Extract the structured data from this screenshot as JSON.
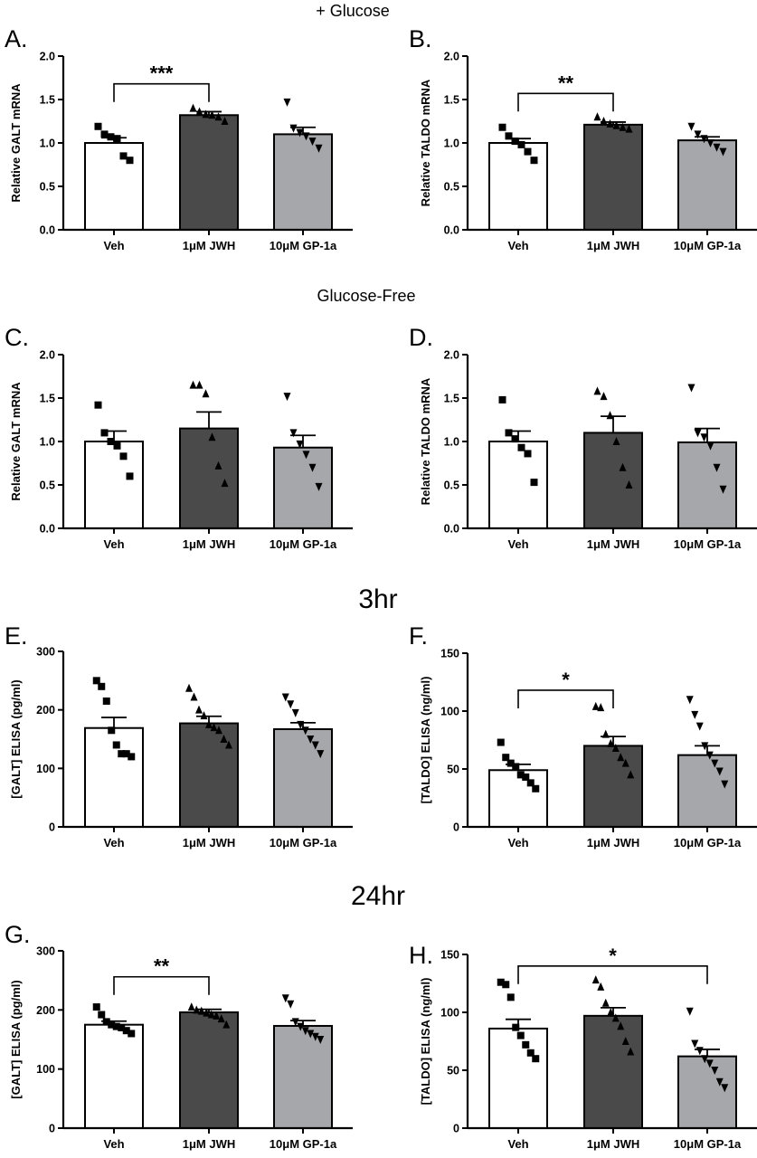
{
  "sections": {
    "glucose": "+ Glucose",
    "glucose_free": "Glucose-Free",
    "hr3": "3hr",
    "hr24": "24hr"
  },
  "colors": {
    "veh": "#ffffff",
    "jwh": "#4a4a4a",
    "gp1a": "#a6a7ab",
    "ink": "#000000"
  },
  "chart_data": [
    {
      "panel": "A.",
      "type": "bar",
      "ylabel": "Relative GALT mRNA",
      "ylim": [
        0,
        2.0
      ],
      "yticks": [
        "0.0",
        "0.5",
        "1.0",
        "1.5",
        "2.0"
      ],
      "categories": [
        "Veh",
        "1μM JWH",
        "10μM GP-1a"
      ],
      "values": [
        1.0,
        1.32,
        1.1
      ],
      "errors": [
        0.06,
        0.04,
        0.08
      ],
      "points": [
        [
          1.19,
          1.1,
          1.07,
          1.05,
          0.85,
          0.8
        ],
        [
          1.4,
          1.36,
          1.33,
          1.32,
          1.3,
          1.25
        ],
        [
          1.47,
          1.17,
          1.12,
          1.08,
          1.02,
          0.94
        ]
      ],
      "significance": [
        {
          "from": 0,
          "to": 1,
          "label": "***",
          "y": 1.68
        }
      ]
    },
    {
      "panel": "B.",
      "type": "bar",
      "ylabel": "Relative TALDO mRNA",
      "ylim": [
        0,
        2.0
      ],
      "yticks": [
        "0.0",
        "0.5",
        "1.0",
        "1.5",
        "2.0"
      ],
      "categories": [
        "Veh",
        "1μM JWH",
        "10μM GP-1a"
      ],
      "values": [
        1.0,
        1.21,
        1.03
      ],
      "errors": [
        0.05,
        0.03,
        0.04
      ],
      "points": [
        [
          1.18,
          1.08,
          1.02,
          0.98,
          0.9,
          0.8
        ],
        [
          1.3,
          1.25,
          1.22,
          1.2,
          1.18,
          1.16
        ],
        [
          1.19,
          1.1,
          1.05,
          1.0,
          0.95,
          0.9
        ]
      ],
      "significance": [
        {
          "from": 0,
          "to": 1,
          "label": "**",
          "y": 1.57
        }
      ]
    },
    {
      "panel": "C.",
      "type": "bar",
      "ylabel": "Relative GALT mRNA",
      "ylim": [
        0,
        2.0
      ],
      "yticks": [
        "0.0",
        "0.5",
        "1.0",
        "1.5",
        "2.0"
      ],
      "categories": [
        "Veh",
        "1μM JWH",
        "10μM GP-1a"
      ],
      "values": [
        1.0,
        1.15,
        0.93
      ],
      "errors": [
        0.12,
        0.19,
        0.14
      ],
      "points": [
        [
          1.42,
          1.1,
          1.0,
          0.95,
          0.83,
          0.6
        ],
        [
          1.65,
          1.65,
          1.55,
          1.05,
          0.72,
          0.52
        ],
        [
          1.52,
          1.1,
          0.97,
          0.85,
          0.7,
          0.48
        ]
      ],
      "significance": []
    },
    {
      "panel": "D.",
      "type": "bar",
      "ylabel": "Relative TALDO mRNA",
      "ylim": [
        0,
        2.0
      ],
      "yticks": [
        "0.0",
        "0.5",
        "1.0",
        "1.5",
        "2.0"
      ],
      "categories": [
        "Veh",
        "1μM JWH",
        "10μM GP-1a"
      ],
      "values": [
        1.0,
        1.1,
        0.99
      ],
      "errors": [
        0.12,
        0.19,
        0.16
      ],
      "points": [
        [
          1.48,
          1.1,
          1.03,
          0.93,
          0.86,
          0.53
        ],
        [
          1.58,
          1.52,
          1.3,
          1.0,
          0.7,
          0.5
        ],
        [
          1.62,
          1.1,
          1.05,
          0.95,
          0.7,
          0.45
        ]
      ],
      "significance": []
    },
    {
      "panel": "E.",
      "type": "bar",
      "ylabel": "[GALT] ELISA (pg/ml)",
      "ylim": [
        0,
        300
      ],
      "yticks": [
        "0",
        "100",
        "200",
        "300"
      ],
      "categories": [
        "Veh",
        "1μM JWH",
        "10μM GP-1a"
      ],
      "values": [
        169,
        177,
        167
      ],
      "errors": [
        18,
        12,
        11
      ],
      "points": [
        [
          250,
          240,
          215,
          165,
          140,
          125,
          125,
          120
        ],
        [
          237,
          222,
          200,
          190,
          175,
          170,
          165,
          150,
          140
        ],
        [
          222,
          210,
          195,
          175,
          165,
          150,
          140,
          125
        ]
      ],
      "significance": []
    },
    {
      "panel": "F.",
      "type": "bar",
      "ylabel": "[TALDO] ELISA (ng/ml)",
      "ylim": [
        0,
        150
      ],
      "yticks": [
        "0",
        "50",
        "100",
        "150"
      ],
      "categories": [
        "Veh",
        "1μM JWH",
        "10μM GP-1a"
      ],
      "values": [
        49,
        70,
        62
      ],
      "errors": [
        5,
        8,
        8
      ],
      "points": [
        [
          73,
          60,
          55,
          52,
          45,
          43,
          38,
          33
        ],
        [
          104,
          103,
          80,
          72,
          68,
          60,
          55,
          45
        ],
        [
          110,
          97,
          87,
          70,
          62,
          55,
          48,
          37
        ]
      ],
      "significance": [
        {
          "from": 0,
          "to": 1,
          "label": "*",
          "y": 118
        }
      ]
    },
    {
      "panel": "G.",
      "type": "bar",
      "ylabel": "[GALT] ELISA (pg/ml)",
      "ylim": [
        0,
        300
      ],
      "yticks": [
        "0",
        "100",
        "200",
        "300"
      ],
      "categories": [
        "Veh",
        "1μM JWH",
        "10μM GP-1a"
      ],
      "values": [
        175,
        196,
        173
      ],
      "errors": [
        6,
        5,
        9
      ],
      "points": [
        [
          205,
          192,
          180,
          175,
          172,
          170,
          165,
          160
        ],
        [
          205,
          200,
          198,
          195,
          192,
          190,
          185,
          175
        ],
        [
          220,
          210,
          180,
          172,
          165,
          160,
          155,
          150
        ]
      ],
      "significance": [
        {
          "from": 0,
          "to": 1,
          "label": "**",
          "y": 256
        }
      ]
    },
    {
      "panel": "H.",
      "type": "bar",
      "ylabel": "[TALDO] ELISA (ng/ml)",
      "ylim": [
        0,
        150
      ],
      "yticks": [
        "0",
        "50",
        "100",
        "150"
      ],
      "categories": [
        "Veh",
        "1μM JWH",
        "10μM GP-1a"
      ],
      "values": [
        86,
        97,
        62
      ],
      "errors": [
        8,
        7,
        6
      ],
      "points": [
        [
          126,
          124,
          113,
          87,
          80,
          72,
          65,
          60
        ],
        [
          128,
          122,
          108,
          100,
          95,
          88,
          75,
          66
        ],
        [
          101,
          73,
          67,
          60,
          56,
          50,
          40,
          35
        ]
      ],
      "significance": [
        {
          "from": 0,
          "to": 2,
          "label": "*",
          "y": 140
        }
      ]
    }
  ]
}
